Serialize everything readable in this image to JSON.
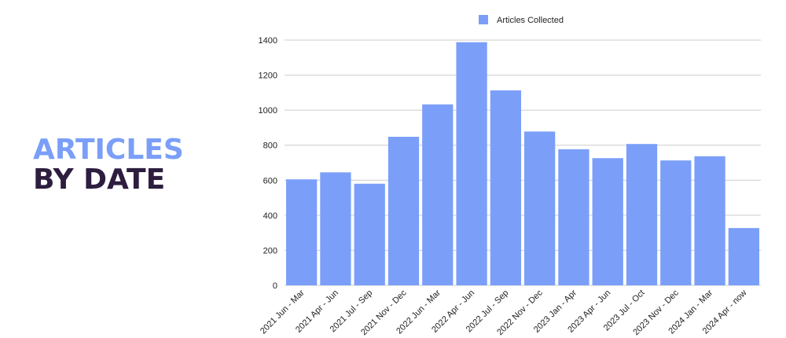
{
  "heading": {
    "line1": "ARTICLES",
    "line2": "BY DATE"
  },
  "colors": {
    "bar": "#7b9ff8",
    "heading_accent": "#7b9ff8",
    "heading_dark": "#2d1d3f",
    "grid": "#cccccc"
  },
  "chart_data": {
    "type": "bar",
    "categories": [
      "2021 Jun - Mar",
      "2021 Apr - Jun",
      "2021 Jul - Sep",
      "2021 Nov - Dec",
      "2022 Jun - Mar",
      "2022 Apr - Jun",
      "2022 Jul - Sep",
      "2022 Nov - Dec",
      "2023 Jan - Apr",
      "2023 Apr - Jun",
      "2023 Jul - Oct",
      "2023 Nov - Dec",
      "2024 Jan - Mar",
      "2024 Apr - now"
    ],
    "series": [
      {
        "name": "Articles Collected",
        "values": [
          605,
          645,
          580,
          848,
          1033,
          1388,
          1113,
          878,
          777,
          726,
          807,
          713,
          737,
          327
        ]
      }
    ],
    "ylim": [
      0,
      1400
    ],
    "yticks": [
      0,
      200,
      400,
      600,
      800,
      1000,
      1200,
      1400
    ],
    "grid": true,
    "legend": "top-center"
  }
}
